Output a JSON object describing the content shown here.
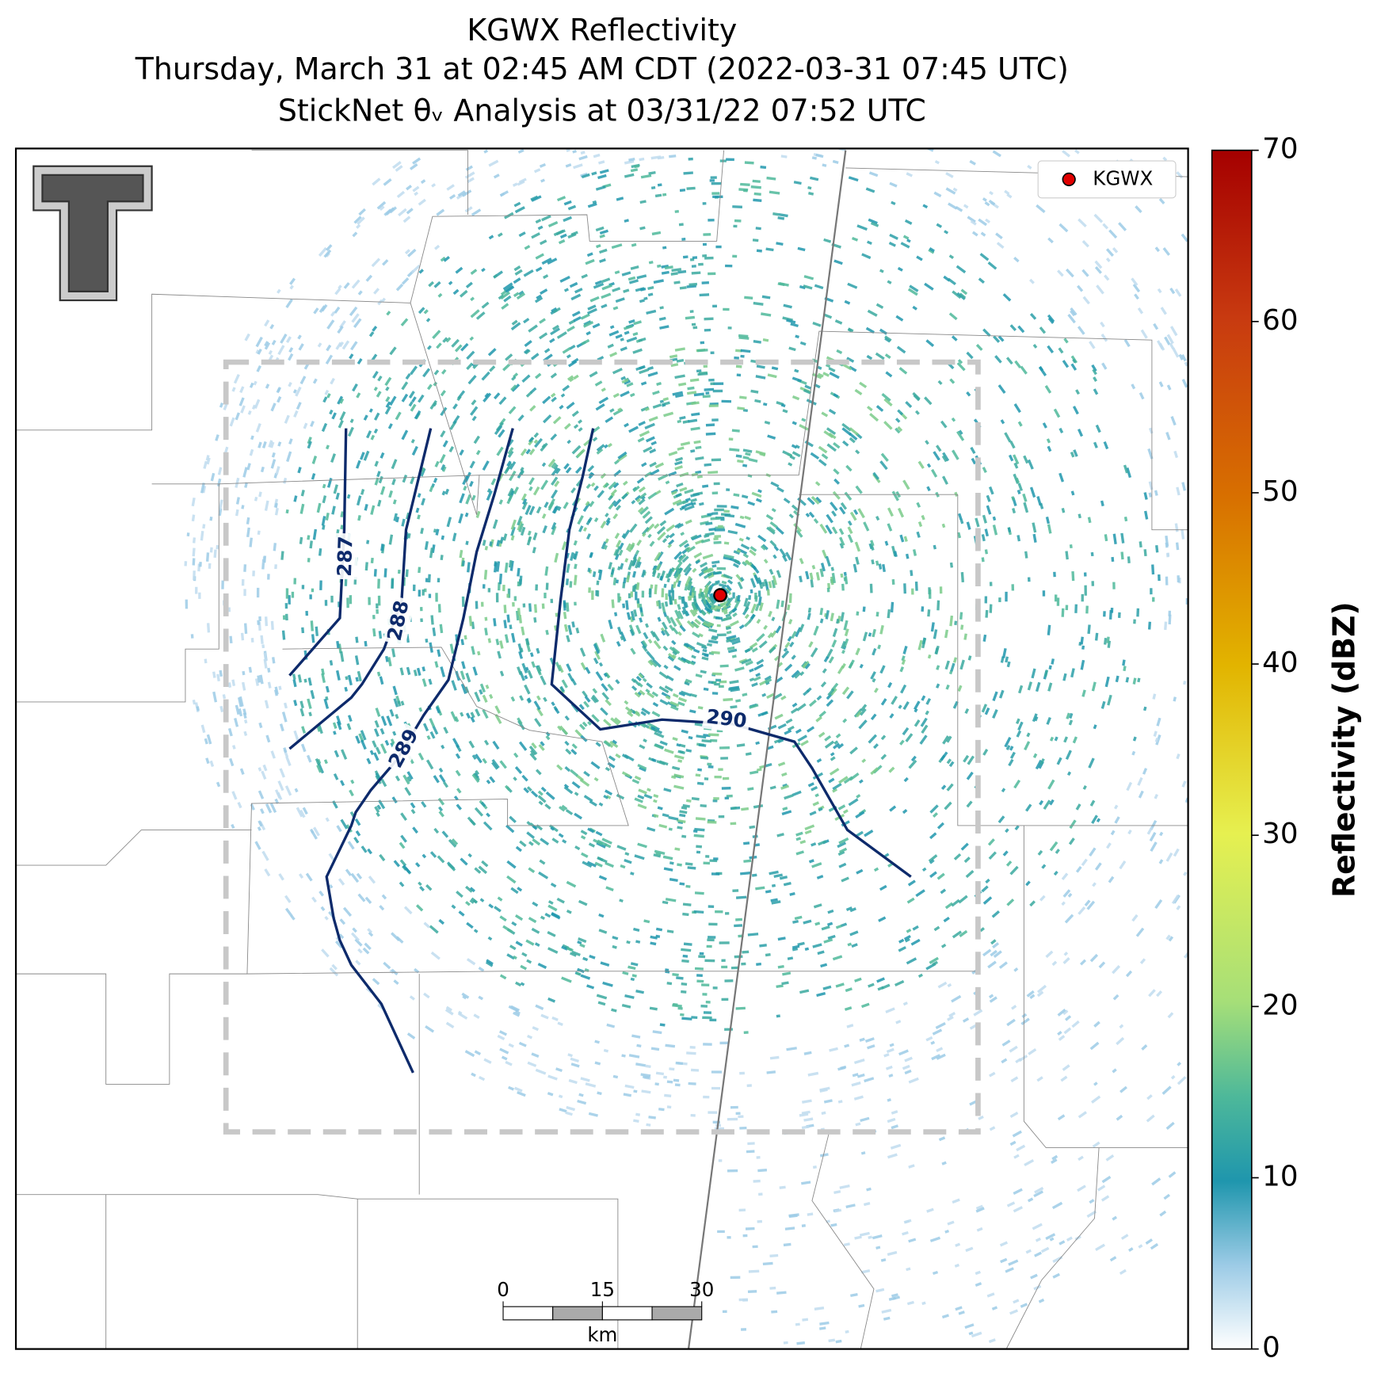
{
  "chart_data": {
    "type": "radar-map",
    "title": "KGWX Reflectivity",
    "subtitle": "Thursday, March 31 at 02:45 AM CDT (2022-03-31 07:45 UTC)",
    "subtitle2": "StickNet θᵥ Analysis at 03/31/22 07:52 UTC",
    "legend": {
      "label": "KGWX",
      "color": "#e00000",
      "position": "upper right"
    },
    "colorbar": {
      "label": "Reflectivity (dBZ)",
      "clim": [
        0,
        70
      ],
      "ticks": [
        0,
        10,
        20,
        30,
        40,
        50,
        60,
        70
      ]
    },
    "contours": {
      "levels": [
        287,
        288,
        289,
        290
      ],
      "color": "#0d2a6b"
    },
    "scale_bar": {
      "ticks": [
        0,
        15,
        30
      ],
      "unit": "km"
    }
  }
}
